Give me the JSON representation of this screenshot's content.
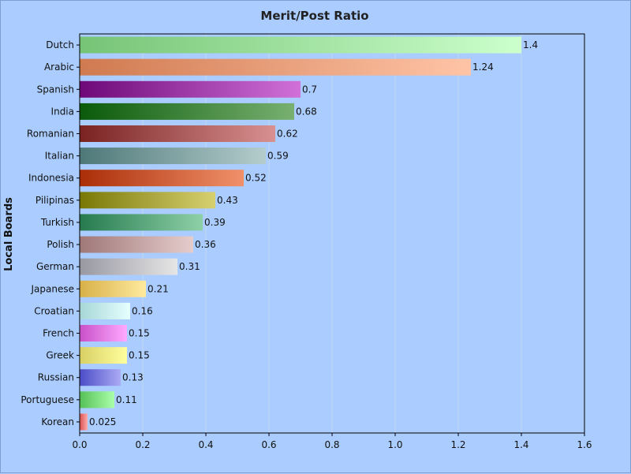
{
  "chart_data": {
    "type": "bar",
    "orientation": "horizontal",
    "title": "Merit/Post Ratio",
    "xlabel": "",
    "ylabel": "Local Boards",
    "xlim": [
      0,
      1.6
    ],
    "x_ticks": [
      "0.0",
      "0.2",
      "0.4",
      "0.6",
      "0.8",
      "1.0",
      "1.2",
      "1.4",
      "1.6"
    ],
    "grid": "vertical",
    "categories": [
      "Dutch",
      "Arabic",
      "Spanish",
      "India",
      "Romanian",
      "Italian",
      "Indonesia",
      "Pilipinas",
      "Turkish",
      "Polish",
      "German",
      "Japanese",
      "Croatian",
      "French",
      "Greek",
      "Russian",
      "Portuguese",
      "Korean"
    ],
    "values": [
      1.4,
      1.24,
      0.7,
      0.68,
      0.62,
      0.59,
      0.52,
      0.43,
      0.39,
      0.36,
      0.31,
      0.21,
      0.16,
      0.15,
      0.15,
      0.13,
      0.11,
      0.025
    ],
    "value_labels": [
      "1.4",
      "1.24",
      "0.7",
      "0.68",
      "0.62",
      "0.59",
      "0.52",
      "0.43",
      "0.39",
      "0.36",
      "0.31",
      "0.21",
      "0.16",
      "0.15",
      "0.15",
      "0.13",
      "0.11",
      "0.025"
    ],
    "bar_colors": [
      [
        "#76c476",
        "#ccffcc"
      ],
      [
        "#d07a50",
        "#ffc4a6"
      ],
      [
        "#6e0878",
        "#d070d8"
      ],
      [
        "#0a5a0a",
        "#78b070"
      ],
      [
        "#7a2222",
        "#d89090"
      ],
      [
        "#4e7878",
        "#b4cccc"
      ],
      [
        "#aa2e08",
        "#f0906a"
      ],
      [
        "#787806",
        "#d8d070"
      ],
      [
        "#267a4e",
        "#8ed0a8"
      ],
      [
        "#a07878",
        "#e6cccc"
      ],
      [
        "#9898a2",
        "#e6e6e6"
      ],
      [
        "#d8b048",
        "#ffea9e"
      ],
      [
        "#a6d6d6",
        "#e6ffff"
      ],
      [
        "#c850c8",
        "#ffaaff"
      ],
      [
        "#d8d064",
        "#ffff9e"
      ],
      [
        "#4c4cc8",
        "#aaaaf4"
      ],
      [
        "#56c056",
        "#aaffaa"
      ],
      [
        "#d85050",
        "#ffaaaa"
      ]
    ],
    "colors": {
      "background": "#aaccff",
      "plot_background": "#aaccff",
      "grid": "#c4d8f0",
      "axis": "#000000"
    }
  }
}
